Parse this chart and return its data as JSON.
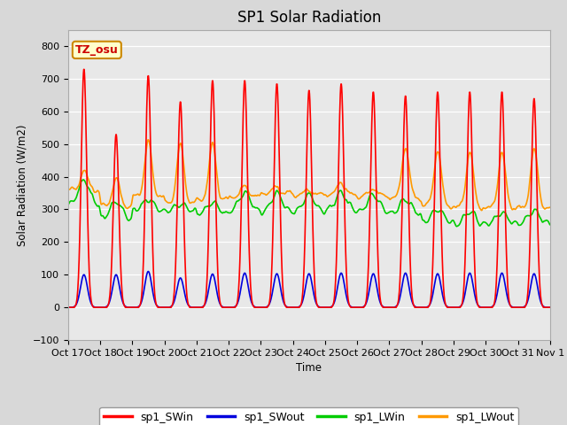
{
  "title": "SP1 Solar Radiation",
  "ylabel": "Solar Radiation (W/m2)",
  "xlabel": "Time",
  "ylim": [
    -100,
    850
  ],
  "yticks": [
    -100,
    0,
    100,
    200,
    300,
    400,
    500,
    600,
    700,
    800
  ],
  "tz_label": "TZ_osu",
  "x_tick_labels": [
    "Oct 17",
    "Oct 18",
    "Oct 19",
    "Oct 20",
    "Oct 21",
    "Oct 22",
    "Oct 23",
    "Oct 24",
    "Oct 25",
    "Oct 26",
    "Oct 27",
    "Oct 28",
    "Oct 29",
    "Oct 30",
    "Oct 31",
    "Nov 1"
  ],
  "colors": {
    "SWin": "#ff0000",
    "SWout": "#0000dd",
    "LWin": "#00cc00",
    "LWout": "#ff9900"
  },
  "fig_facecolor": "#d8d8d8",
  "plot_bg_color": "#e8e8e8",
  "legend_labels": [
    "sp1_SWin",
    "sp1_SWout",
    "sp1_LWin",
    "sp1_LWout"
  ],
  "sw_peaks": [
    730,
    530,
    710,
    630,
    695,
    695,
    685,
    665,
    685,
    660,
    648,
    660,
    660,
    660,
    640
  ],
  "sw_out_peaks": [
    100,
    100,
    110,
    90,
    102,
    105,
    103,
    103,
    105,
    103,
    105,
    103,
    105,
    105,
    103
  ],
  "lw_in_night": [
    310,
    270,
    295,
    295,
    285,
    295,
    290,
    290,
    295,
    290,
    285,
    260,
    250,
    255,
    255
  ],
  "lw_in_day": [
    390,
    325,
    330,
    315,
    320,
    350,
    350,
    345,
    350,
    345,
    330,
    300,
    295,
    290,
    295
  ],
  "lw_out_night": [
    360,
    310,
    340,
    320,
    330,
    340,
    350,
    345,
    345,
    340,
    335,
    310,
    305,
    305,
    305
  ],
  "lw_out_day": [
    420,
    395,
    510,
    500,
    500,
    370,
    365,
    360,
    385,
    365,
    495,
    485,
    480,
    475,
    485
  ],
  "n_days": 15,
  "pts_per_day": 96
}
